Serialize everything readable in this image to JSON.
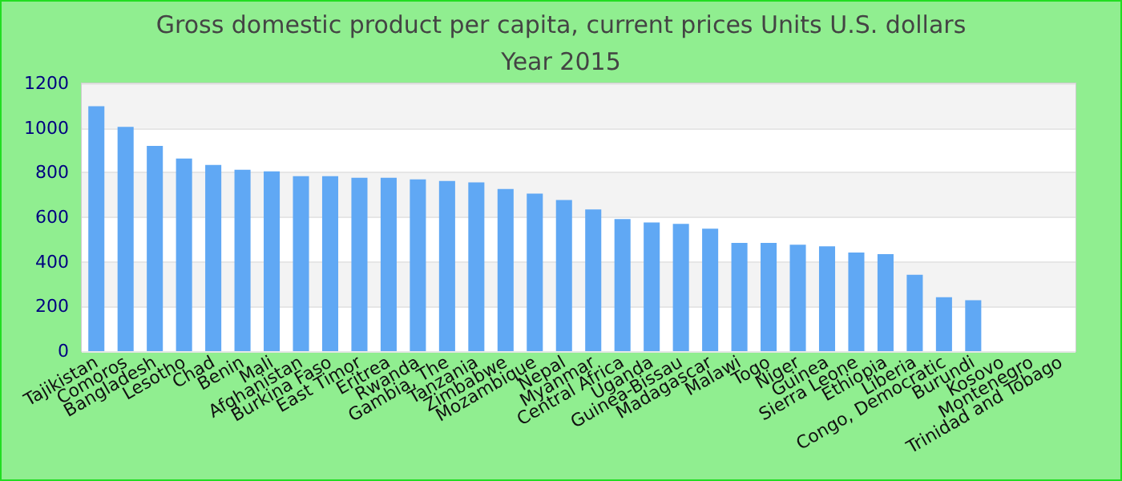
{
  "chart_data": {
    "type": "bar",
    "title": "Gross domestic product per capita, current prices Units U.S. dollars",
    "subtitle": "Year 2015",
    "categories": [
      "Tajikistan",
      "Comoros",
      "Bangladesh",
      "Lesotho",
      "Chad",
      "Benin",
      "Mali",
      "Afghanistan",
      "Burkina Faso",
      "East Timor",
      "Eritrea",
      "Rwanda",
      "Gambia, The",
      "Tanzania",
      "Zimbabwe",
      "Mozambique",
      "Nepal",
      "Myanmar",
      "Central Africa",
      "Uganda",
      "Guinea-Bissau",
      "Madagascar",
      "Malawi",
      "Togo",
      "Niger",
      "Guinea",
      "Sierra Leone",
      "Ethiopia",
      "Liberia",
      "Congo, Democratic",
      "Burundi",
      "Kosovo",
      "Montenegro",
      "Trinidad and Tobago"
    ],
    "values": [
      1098,
      1005,
      920,
      863,
      834,
      813,
      806,
      784,
      784,
      777,
      777,
      770,
      763,
      756,
      727,
      706,
      677,
      635,
      592,
      577,
      570,
      549,
      485,
      485,
      477,
      470,
      442,
      435,
      342,
      242,
      228,
      null,
      null,
      null
    ],
    "color": "#60a8f4",
    "ylim": [
      0,
      1200
    ],
    "yticks": [
      0,
      200,
      400,
      600,
      800,
      1000,
      1200
    ],
    "grid": "y"
  }
}
